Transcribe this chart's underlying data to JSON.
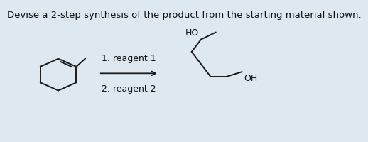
{
  "title": "Devise a 2-step synthesis of the product from the starting material shown.",
  "title_fontsize": 9.5,
  "background_color": "#dde8f0",
  "reagent1_text": "1. reagent 1",
  "reagent2_text": "2. reagent 2",
  "reagent_fontsize": 9.0,
  "line_color": "#1a1a1a",
  "text_color": "#111111",
  "lw": 1.4
}
